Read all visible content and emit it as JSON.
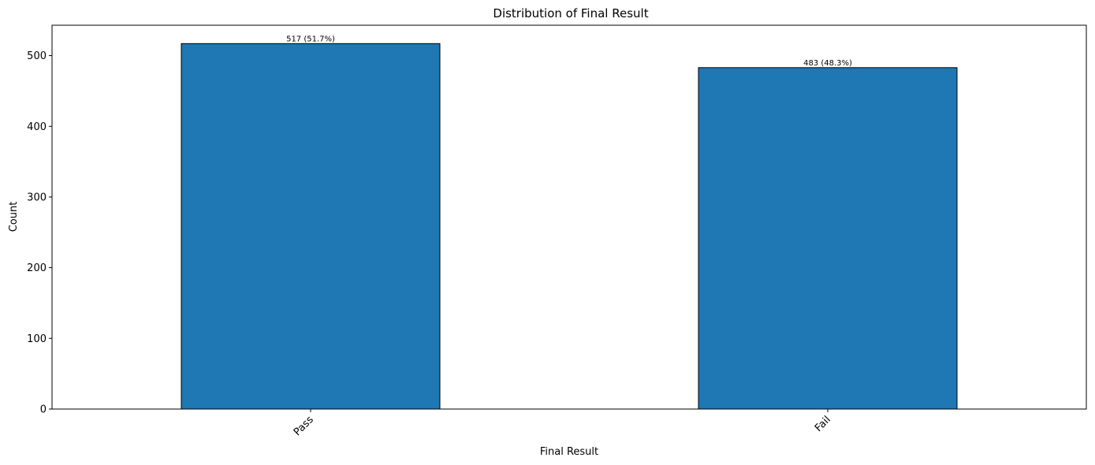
{
  "chart_data": {
    "type": "bar",
    "title": "Distribution of Final Result",
    "xlabel": "Final Result",
    "ylabel": "Count",
    "categories": [
      "Pass",
      "Fail"
    ],
    "values": [
      517,
      483
    ],
    "data_labels": [
      "517 (51.7%)",
      "483 (48.3%)"
    ],
    "ylim": [
      0,
      543
    ],
    "yticks": [
      0,
      100,
      200,
      300,
      400,
      500
    ],
    "ytick_labels": [
      "0",
      "100",
      "200",
      "300",
      "400",
      "500"
    ],
    "grid": false,
    "legend": "none",
    "bar_color": "#1f77b4",
    "bar_edge_color": "#000000"
  }
}
